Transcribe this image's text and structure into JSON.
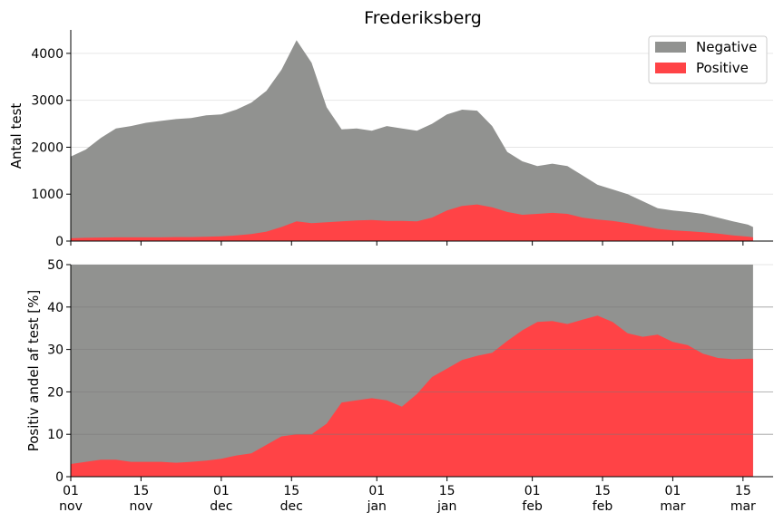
{
  "chart_data": [
    {
      "type": "area",
      "stacked": false,
      "title": "Frederiksberg",
      "ylabel": "Antal test",
      "ylim": [
        0,
        4500
      ],
      "yticks": [
        0,
        1000,
        2000,
        3000,
        4000
      ],
      "grid": "horizontal",
      "legend": {
        "placement": "top-right",
        "entries": [
          "Negative",
          "Positive"
        ]
      },
      "x": [
        "11-01",
        "11-04",
        "11-07",
        "11-10",
        "11-13",
        "11-16",
        "11-19",
        "11-22",
        "11-25",
        "11-28",
        "12-01",
        "12-04",
        "12-07",
        "12-10",
        "12-13",
        "12-16",
        "12-19",
        "12-22",
        "12-25",
        "12-28",
        "12-31",
        "01-03",
        "01-06",
        "01-09",
        "01-12",
        "01-15",
        "01-18",
        "01-21",
        "01-24",
        "01-27",
        "01-30",
        "02-02",
        "02-05",
        "02-08",
        "02-11",
        "02-14",
        "02-17",
        "02-20",
        "02-23",
        "02-26",
        "03-01",
        "03-04",
        "03-07",
        "03-10",
        "03-13",
        "03-16",
        "03-17"
      ],
      "series": [
        {
          "name": "Negative",
          "color": "#919290",
          "values": [
            1800,
            1950,
            2200,
            2400,
            2450,
            2520,
            2560,
            2600,
            2620,
            2680,
            2700,
            2800,
            2950,
            3200,
            3650,
            4280,
            3800,
            2850,
            2380,
            2400,
            2350,
            2450,
            2400,
            2350,
            2500,
            2700,
            2800,
            2780,
            2450,
            1900,
            1700,
            1600,
            1650,
            1600,
            1400,
            1200,
            1100,
            1000,
            850,
            700,
            650,
            620,
            580,
            500,
            420,
            350,
            300
          ]
        },
        {
          "name": "Positive",
          "color": "#ff4346",
          "values": [
            60,
            70,
            75,
            80,
            80,
            80,
            80,
            85,
            85,
            90,
            100,
            120,
            150,
            200,
            300,
            420,
            380,
            400,
            420,
            440,
            450,
            430,
            430,
            420,
            500,
            650,
            750,
            780,
            720,
            620,
            560,
            580,
            600,
            580,
            500,
            460,
            430,
            380,
            320,
            260,
            230,
            210,
            190,
            160,
            120,
            95,
            80
          ]
        }
      ]
    },
    {
      "type": "area",
      "stacked": false,
      "ylabel": "Positiv andel af test [%]",
      "ylim": [
        0,
        50
      ],
      "yticks": [
        0,
        10,
        20,
        30,
        40,
        50
      ],
      "grid": "horizontal",
      "xticks": [
        {
          "x": "11-01",
          "day": "01",
          "month": "nov"
        },
        {
          "x": "11-15",
          "day": "15",
          "month": "nov"
        },
        {
          "x": "12-01",
          "day": "01",
          "month": "dec"
        },
        {
          "x": "12-15",
          "day": "15",
          "month": "dec"
        },
        {
          "x": "01-01",
          "day": "01",
          "month": "jan"
        },
        {
          "x": "01-15",
          "day": "15",
          "month": "jan"
        },
        {
          "x": "02-01",
          "day": "01",
          "month": "feb"
        },
        {
          "x": "02-15",
          "day": "15",
          "month": "feb"
        },
        {
          "x": "03-01",
          "day": "01",
          "month": "mar"
        },
        {
          "x": "03-15",
          "day": "15",
          "month": "mar"
        }
      ],
      "x": [
        "11-01",
        "11-04",
        "11-07",
        "11-10",
        "11-13",
        "11-16",
        "11-19",
        "11-22",
        "11-25",
        "11-28",
        "12-01",
        "12-04",
        "12-07",
        "12-10",
        "12-13",
        "12-16",
        "12-19",
        "12-22",
        "12-25",
        "12-28",
        "12-31",
        "01-03",
        "01-06",
        "01-09",
        "01-12",
        "01-15",
        "01-18",
        "01-21",
        "01-24",
        "01-27",
        "01-30",
        "02-02",
        "02-05",
        "02-08",
        "02-11",
        "02-14",
        "02-17",
        "02-20",
        "02-23",
        "02-26",
        "03-01",
        "03-04",
        "03-07",
        "03-10",
        "03-13",
        "03-16",
        "03-17"
      ],
      "series": [
        {
          "name": "Negative",
          "color": "#919290",
          "values": [
            50,
            50,
            50,
            50,
            50,
            50,
            50,
            50,
            50,
            50,
            50,
            50,
            50,
            50,
            50,
            50,
            50,
            50,
            50,
            50,
            50,
            50,
            50,
            50,
            50,
            50,
            50,
            50,
            50,
            50,
            50,
            50,
            50,
            50,
            50,
            50,
            50,
            50,
            50,
            50,
            50,
            50,
            50,
            50,
            50,
            50,
            50
          ]
        },
        {
          "name": "Positive",
          "color": "#ff4346",
          "values": [
            3,
            3.5,
            4,
            4,
            3.5,
            3.5,
            3.5,
            3.3,
            3.5,
            3.8,
            4.2,
            5,
            5.5,
            7.5,
            9.5,
            10,
            10,
            12.5,
            17.5,
            18,
            18.5,
            18,
            16.5,
            19.5,
            23.5,
            25.5,
            27.5,
            28.5,
            29.2,
            32,
            34.5,
            36.5,
            36.7,
            36,
            37,
            38,
            36.5,
            33.8,
            33,
            33.5,
            31.8,
            31,
            29,
            28,
            27.7,
            27.8,
            27.8
          ]
        }
      ]
    }
  ]
}
